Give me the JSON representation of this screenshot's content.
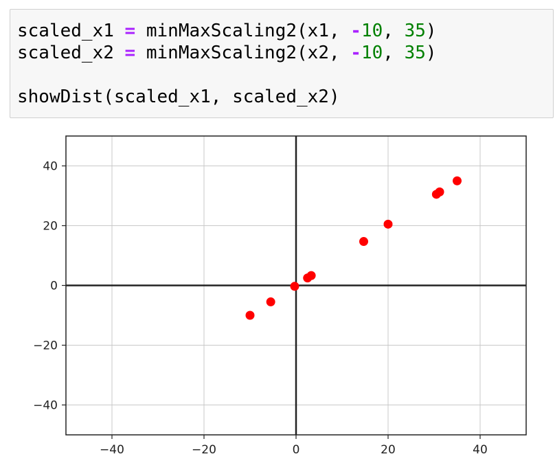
{
  "code_cell": {
    "line1": {
      "var": "scaled_x1",
      "op": "=",
      "fn": "minMaxScaling2(x1, ",
      "minus": "-",
      "num1": "10",
      "sep": ", ",
      "num2": "35",
      "close": ")"
    },
    "line2": {
      "var": "scaled_x2",
      "op": "=",
      "fn": "minMaxScaling2(x2, ",
      "minus": "-",
      "num1": "10",
      "sep": ", ",
      "num2": "35",
      "close": ")"
    },
    "line4": "showDist(scaled_x1, scaled_x2)"
  },
  "colors": {
    "point": "#ff0000",
    "keyword_op": "#aa22ff",
    "number": "#008000",
    "grid": "#c8c8c8",
    "axis": "#222222"
  },
  "chart_data": {
    "type": "scatter",
    "title": "",
    "xlabel": "",
    "ylabel": "",
    "xlim": [
      -50,
      50
    ],
    "ylim": [
      -50,
      50
    ],
    "grid": true,
    "legend": "none",
    "xticks": [
      -40,
      -20,
      0,
      20,
      40
    ],
    "yticks": [
      -40,
      -20,
      0,
      20,
      40
    ],
    "xtick_labels": [
      "−40",
      "−20",
      "0",
      "20",
      "40"
    ],
    "ytick_labels": [
      "−40",
      "−20",
      "0",
      "20",
      "40"
    ],
    "series": [
      {
        "color": "#ff0000",
        "x": [
          -10,
          -5.5,
          -0.3,
          2.5,
          3.3,
          14.7,
          20.0,
          30.5,
          31.2,
          35.0
        ],
        "y": [
          -10,
          -5.5,
          -0.3,
          2.5,
          3.3,
          14.7,
          20.5,
          30.5,
          31.3,
          35.0
        ]
      }
    ]
  }
}
